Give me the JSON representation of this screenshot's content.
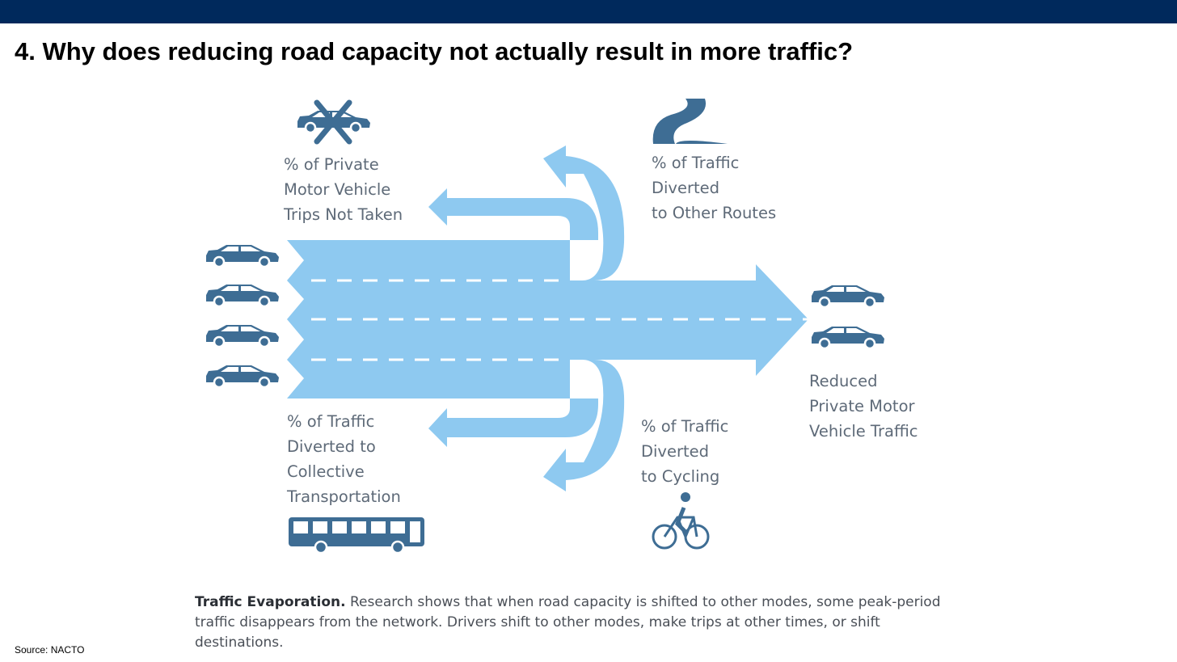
{
  "title": "4. Why does reducing road capacity not actually result in more traffic?",
  "labels": {
    "trips_not_taken": [
      "% of Private",
      "Motor Vehicle",
      "Trips Not Taken"
    ],
    "other_routes": [
      "% of Traffic",
      "Diverted",
      "to Other Routes"
    ],
    "collective": [
      "% of Traffic",
      "Diverted to",
      "Collective",
      "Transportation"
    ],
    "cycling": [
      "% of Traffic",
      "Diverted",
      "to Cycling"
    ],
    "reduced": [
      "Reduced",
      "Private Motor",
      "Vehicle Traffic"
    ]
  },
  "caption": {
    "bold": "Traffic Evaporation.",
    "text": " Research shows that when road capacity is shifted to other modes, some peak-period traffic disappears from the network. Drivers shift to other modes, make trips at other times, or shift destinations."
  },
  "source": "Source: NACTO",
  "colors": {
    "flow": "#8ec9f0",
    "icon": "#3e6d94",
    "header": "#00295c"
  },
  "icons": [
    "crossed-car-icon",
    "winding-road-icon",
    "car-icon",
    "bus-icon",
    "cyclist-icon"
  ]
}
